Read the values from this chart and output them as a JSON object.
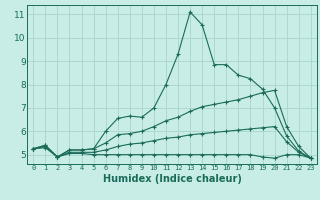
{
  "xlabel": "Humidex (Indice chaleur)",
  "bg_color": "#c8ece6",
  "grid_color": "#aad4cc",
  "line_color": "#1a6b5a",
  "x_ticks": [
    0,
    1,
    2,
    3,
    4,
    5,
    6,
    7,
    8,
    9,
    10,
    11,
    12,
    13,
    14,
    15,
    16,
    17,
    18,
    19,
    20,
    21,
    22,
    23
  ],
  "y_ticks": [
    5,
    6,
    7,
    8,
    9,
    10,
    11
  ],
  "ylim": [
    4.6,
    11.4
  ],
  "xlim": [
    -0.5,
    23.5
  ],
  "series1_x": [
    0,
    1,
    2,
    3,
    4,
    5,
    6,
    7,
    8,
    9,
    10,
    11,
    12,
    13,
    14,
    15,
    16,
    17,
    18,
    19,
    20,
    21,
    22,
    23
  ],
  "series1_y": [
    5.25,
    5.4,
    4.9,
    5.2,
    5.2,
    5.25,
    6.0,
    6.55,
    6.65,
    6.6,
    7.0,
    8.0,
    9.3,
    11.1,
    10.55,
    8.85,
    8.85,
    8.4,
    8.25,
    7.8,
    7.0,
    5.8,
    5.15,
    4.85
  ],
  "series2_x": [
    0,
    1,
    2,
    3,
    4,
    5,
    6,
    7,
    8,
    9,
    10,
    11,
    12,
    13,
    14,
    15,
    16,
    17,
    18,
    19,
    20,
    21,
    22,
    23
  ],
  "series2_y": [
    5.25,
    5.4,
    4.9,
    5.2,
    5.2,
    5.25,
    5.5,
    5.85,
    5.9,
    6.0,
    6.2,
    6.45,
    6.6,
    6.85,
    7.05,
    7.15,
    7.25,
    7.35,
    7.5,
    7.65,
    7.75,
    6.2,
    5.35,
    4.85
  ],
  "series3_x": [
    0,
    1,
    2,
    3,
    4,
    5,
    6,
    7,
    8,
    9,
    10,
    11,
    12,
    13,
    14,
    15,
    16,
    17,
    18,
    19,
    20,
    21,
    22,
    23
  ],
  "series3_y": [
    5.25,
    5.35,
    4.9,
    5.1,
    5.1,
    5.1,
    5.2,
    5.35,
    5.45,
    5.5,
    5.6,
    5.7,
    5.75,
    5.85,
    5.9,
    5.95,
    6.0,
    6.05,
    6.1,
    6.15,
    6.2,
    5.55,
    5.1,
    4.85
  ],
  "series4_x": [
    0,
    1,
    2,
    3,
    4,
    5,
    6,
    7,
    8,
    9,
    10,
    11,
    12,
    13,
    14,
    15,
    16,
    17,
    18,
    19,
    20,
    21,
    22,
    23
  ],
  "series4_y": [
    5.25,
    5.3,
    4.9,
    5.05,
    5.05,
    5.0,
    5.0,
    5.0,
    5.0,
    5.0,
    5.0,
    5.0,
    5.0,
    5.0,
    5.0,
    5.0,
    5.0,
    5.0,
    5.0,
    4.9,
    4.85,
    5.0,
    5.0,
    4.85
  ],
  "xlabel_fontsize": 7.0,
  "xlabel_fontweight": "bold",
  "ytick_fontsize": 6.5,
  "xtick_fontsize": 5.0
}
